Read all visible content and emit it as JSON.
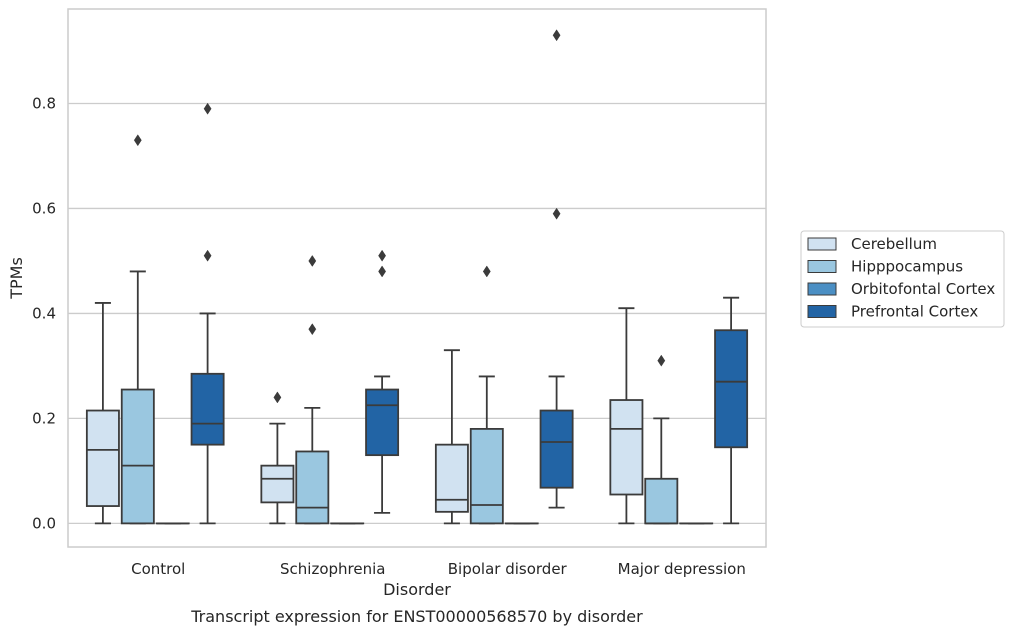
{
  "chart_data": {
    "type": "box",
    "caption": "Transcript expression for ENST00000568570 by disorder",
    "xlabel": "Disorder",
    "ylabel": "TPMs",
    "ylim": [
      -0.045,
      0.98
    ],
    "yticks": [
      0.0,
      0.2,
      0.4,
      0.6,
      0.8
    ],
    "ytick_labels": [
      "0.0",
      "0.2",
      "0.4",
      "0.6",
      "0.8"
    ],
    "grid": "horizontal",
    "legend_position": "right",
    "categories": [
      "Control",
      "Schizophrenia",
      "Bipolar disorder",
      "Major depression"
    ],
    "series": [
      {
        "name": "Cerebellum",
        "color": "#d1e2f1",
        "boxes": [
          {
            "whislo": 0.0,
            "q1": 0.033,
            "med": 0.14,
            "q3": 0.215,
            "whishi": 0.42,
            "fliers": []
          },
          {
            "whislo": 0.0,
            "q1": 0.04,
            "med": 0.085,
            "q3": 0.11,
            "whishi": 0.19,
            "fliers": [
              0.24
            ]
          },
          {
            "whislo": 0.0,
            "q1": 0.022,
            "med": 0.045,
            "q3": 0.15,
            "whishi": 0.33,
            "fliers": []
          },
          {
            "whislo": 0.0,
            "q1": 0.055,
            "med": 0.18,
            "q3": 0.235,
            "whishi": 0.41,
            "fliers": []
          }
        ]
      },
      {
        "name": "Hipppocampus",
        "color": "#9ac7e0",
        "boxes": [
          {
            "whislo": 0.0,
            "q1": 0.0,
            "med": 0.11,
            "q3": 0.255,
            "whishi": 0.48,
            "fliers": [
              0.73
            ]
          },
          {
            "whislo": 0.0,
            "q1": 0.0,
            "med": 0.03,
            "q3": 0.137,
            "whishi": 0.22,
            "fliers": [
              0.37,
              0.5
            ]
          },
          {
            "whislo": 0.0,
            "q1": 0.0,
            "med": 0.035,
            "q3": 0.18,
            "whishi": 0.28,
            "fliers": [
              0.48
            ]
          },
          {
            "whislo": 0.0,
            "q1": 0.0,
            "med": 0.0,
            "q3": 0.085,
            "whishi": 0.2,
            "fliers": [
              0.31
            ]
          }
        ]
      },
      {
        "name": "Orbitofontal Cortex",
        "color": "#4b8fc4",
        "boxes": [
          {
            "whislo": 0.0,
            "q1": 0.0,
            "med": 0.0,
            "q3": 0.0,
            "whishi": 0.0,
            "fliers": []
          },
          {
            "whislo": 0.0,
            "q1": 0.0,
            "med": 0.0,
            "q3": 0.0,
            "whishi": 0.0,
            "fliers": []
          },
          {
            "whislo": 0.0,
            "q1": 0.0,
            "med": 0.0,
            "q3": 0.0,
            "whishi": 0.0,
            "fliers": []
          },
          {
            "whislo": 0.0,
            "q1": 0.0,
            "med": 0.0,
            "q3": 0.0,
            "whishi": 0.0,
            "fliers": []
          }
        ]
      },
      {
        "name": "Prefrontal Cortex",
        "color": "#2264a5",
        "boxes": [
          {
            "whislo": 0.0,
            "q1": 0.15,
            "med": 0.19,
            "q3": 0.285,
            "whishi": 0.4,
            "fliers": [
              0.51,
              0.79
            ]
          },
          {
            "whislo": 0.02,
            "q1": 0.13,
            "med": 0.225,
            "q3": 0.255,
            "whishi": 0.28,
            "fliers": [
              0.48,
              0.51
            ]
          },
          {
            "whislo": 0.03,
            "q1": 0.068,
            "med": 0.155,
            "q3": 0.215,
            "whishi": 0.28,
            "fliers": [
              0.59,
              0.93
            ]
          },
          {
            "whislo": 0.0,
            "q1": 0.145,
            "med": 0.27,
            "q3": 0.368,
            "whishi": 0.43,
            "fliers": []
          }
        ]
      }
    ]
  }
}
